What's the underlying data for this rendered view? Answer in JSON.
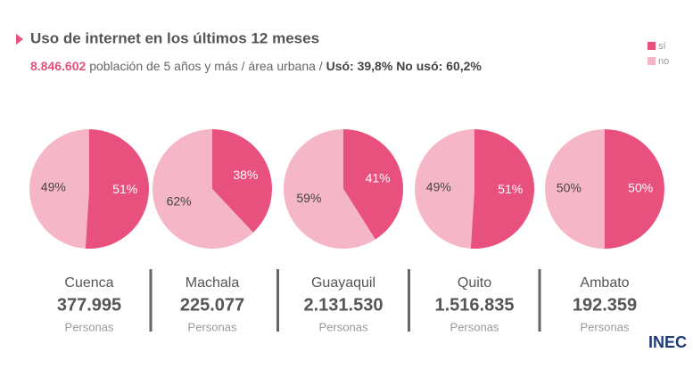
{
  "header": {
    "title": "Uso de internet en los últimos 12 meses",
    "subtitle": {
      "population": "8.846.602",
      "text": "población de 5 años y más / área urbana /",
      "used": "Usó: 39,8%",
      "not_used": "No usó: 60,2%"
    },
    "legend": [
      {
        "name": "sí",
        "color": "#e8507d"
      },
      {
        "name": "no",
        "color": "#f5b7c8"
      }
    ]
  },
  "chart_data": [
    {
      "type": "pie",
      "title": "Cuenca",
      "values": [
        51,
        49
      ],
      "value_labels": [
        "51%",
        "49%"
      ],
      "colors": [
        "#e8507d",
        "#f5b7c8"
      ],
      "population": "377.995",
      "unit": "Personas"
    },
    {
      "type": "pie",
      "title": "Machala",
      "values": [
        38,
        62
      ],
      "value_labels": [
        "38%",
        "62%"
      ],
      "colors": [
        "#e8507d",
        "#f5b7c8"
      ],
      "population": "225.077",
      "unit": "Personas"
    },
    {
      "type": "pie",
      "title": "Guayaquil",
      "values": [
        41,
        59
      ],
      "value_labels": [
        "41%",
        "59%"
      ],
      "colors": [
        "#e8507d",
        "#f5b7c8"
      ],
      "population": "2.131.530",
      "unit": "Personas"
    },
    {
      "type": "pie",
      "title": "Quito",
      "values": [
        51,
        49
      ],
      "value_labels": [
        "51%",
        "49%"
      ],
      "colors": [
        "#e8507d",
        "#f5b7c8"
      ],
      "population": "1.516.835",
      "unit": "Personas"
    },
    {
      "type": "pie",
      "title": "Ambato",
      "values": [
        50,
        50
      ],
      "value_labels": [
        "50%",
        "50%"
      ],
      "colors": [
        "#e8507d",
        "#f5b7c8"
      ],
      "population": "192.359",
      "unit": "Personas"
    }
  ],
  "logo": "INEC"
}
